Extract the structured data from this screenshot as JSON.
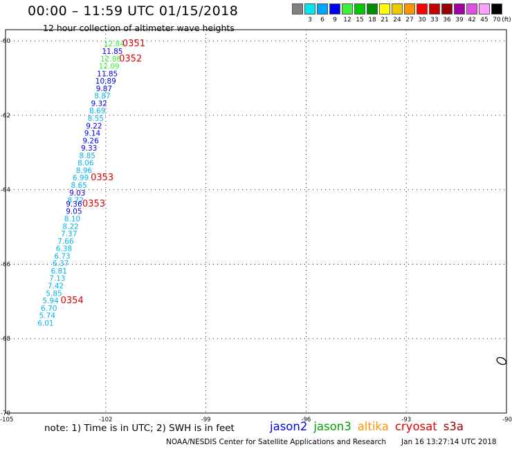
{
  "header": {
    "title": "00:00 – 11:59 UTC 01/15/2018",
    "subtitle": "12 hour collection of altimeter wave heights"
  },
  "legend": {
    "unit_label": "(ft)",
    "bins": [
      {
        "label": "",
        "color": "#808080"
      },
      {
        "label": "3",
        "color": "#00e5ee"
      },
      {
        "label": "6",
        "color": "#00a5ff"
      },
      {
        "label": "9",
        "color": "#0000ee"
      },
      {
        "label": "12",
        "color": "#3cf03c"
      },
      {
        "label": "15",
        "color": "#00c800"
      },
      {
        "label": "18",
        "color": "#008c00"
      },
      {
        "label": "21",
        "color": "#ffff00"
      },
      {
        "label": "24",
        "color": "#f0c800"
      },
      {
        "label": "27",
        "color": "#ff9600"
      },
      {
        "label": "30",
        "color": "#ff0000"
      },
      {
        "label": "33",
        "color": "#c80000"
      },
      {
        "label": "36",
        "color": "#960000"
      },
      {
        "label": "39",
        "color": "#a000a0"
      },
      {
        "label": "42",
        "color": "#e050e0"
      },
      {
        "label": "45",
        "color": "#ffa0ff"
      },
      {
        "label": "70",
        "color": "#000000"
      }
    ]
  },
  "map": {
    "lat_ticks": [
      "-60",
      "-62",
      "-64",
      "-66",
      "-68",
      "-70"
    ],
    "lon_ticks": [
      "-105",
      "-102",
      "-99",
      "-96",
      "-93",
      "-90"
    ],
    "observations": [
      {
        "value": "12.84",
        "color": "#3cf03c",
        "lat": -60.15,
        "lon": -101.75
      },
      {
        "value": "11.85",
        "color": "#0000ee",
        "lat": -60.35,
        "lon": -101.8
      },
      {
        "value": "12.86",
        "color": "#3cf03c",
        "lat": -60.55,
        "lon": -101.85
      },
      {
        "value": "12.09",
        "color": "#3cf03c",
        "lat": -60.75,
        "lon": -101.9
      },
      {
        "value": "11.85",
        "color": "#0000ee",
        "lat": -60.95,
        "lon": -101.95
      },
      {
        "value": "10.89",
        "color": "#0000ee",
        "lat": -61.15,
        "lon": -102.0
      },
      {
        "value": "9.87",
        "color": "#0000ee",
        "lat": -61.35,
        "lon": -102.05
      },
      {
        "value": "8.87",
        "color": "#00b4ee",
        "lat": -61.55,
        "lon": -102.1
      },
      {
        "value": "9.32",
        "color": "#0000ee",
        "lat": -61.75,
        "lon": -102.2
      },
      {
        "value": "8.69",
        "color": "#00b4ee",
        "lat": -61.95,
        "lon": -102.25
      },
      {
        "value": "8.55",
        "color": "#00b4ee",
        "lat": -62.15,
        "lon": -102.3
      },
      {
        "value": "9.22",
        "color": "#0000ee",
        "lat": -62.35,
        "lon": -102.35
      },
      {
        "value": "9.14",
        "color": "#0000ee",
        "lat": -62.55,
        "lon": -102.4
      },
      {
        "value": "9.26",
        "color": "#0000ee",
        "lat": -62.75,
        "lon": -102.45
      },
      {
        "value": "9.33",
        "color": "#0000ee",
        "lat": -62.95,
        "lon": -102.5
      },
      {
        "value": "8.85",
        "color": "#00b4ee",
        "lat": -63.15,
        "lon": -102.55
      },
      {
        "value": "8.06",
        "color": "#00b4ee",
        "lat": -63.35,
        "lon": -102.6
      },
      {
        "value": "8.96",
        "color": "#00b4ee",
        "lat": -63.55,
        "lon": -102.65
      },
      {
        "value": "6.99",
        "color": "#00b4ee",
        "lat": -63.75,
        "lon": -102.75
      },
      {
        "value": "8.65",
        "color": "#00b4ee",
        "lat": -63.95,
        "lon": -102.8
      },
      {
        "value": "9.03",
        "color": "#0000ee",
        "lat": -64.15,
        "lon": -102.85
      },
      {
        "value": "8.72",
        "color": "#00b4ee",
        "lat": -64.35,
        "lon": -102.9
      },
      {
        "value": "9.36",
        "color": "#0000ee",
        "lat": -64.45,
        "lon": -102.95
      },
      {
        "value": "9.05",
        "color": "#0000ee",
        "lat": -64.65,
        "lon": -102.95
      },
      {
        "value": "8.10",
        "color": "#00b4ee",
        "lat": -64.85,
        "lon": -103.0
      },
      {
        "value": "8.22",
        "color": "#00b4ee",
        "lat": -65.05,
        "lon": -103.05
      },
      {
        "value": "7.37",
        "color": "#00b4ee",
        "lat": -65.25,
        "lon": -103.1
      },
      {
        "value": "7.66",
        "color": "#00b4ee",
        "lat": -65.45,
        "lon": -103.2
      },
      {
        "value": "6.38",
        "color": "#00b4ee",
        "lat": -65.65,
        "lon": -103.25
      },
      {
        "value": "6.73",
        "color": "#00b4ee",
        "lat": -65.85,
        "lon": -103.3
      },
      {
        "value": "6.37",
        "color": "#00b4ee",
        "lat": -66.05,
        "lon": -103.35
      },
      {
        "value": "6.81",
        "color": "#00b4ee",
        "lat": -66.25,
        "lon": -103.4
      },
      {
        "value": "7.13",
        "color": "#00b4ee",
        "lat": -66.45,
        "lon": -103.45
      },
      {
        "value": "7.42",
        "color": "#00b4ee",
        "lat": -66.65,
        "lon": -103.5
      },
      {
        "value": "5.85",
        "color": "#00b4ee",
        "lat": -66.85,
        "lon": -103.55
      },
      {
        "value": "5.94",
        "color": "#00b4ee",
        "lat": -67.05,
        "lon": -103.65
      },
      {
        "value": "6.70",
        "color": "#00b4ee",
        "lat": -67.25,
        "lon": -103.7
      },
      {
        "value": "5.74",
        "color": "#00b4ee",
        "lat": -67.45,
        "lon": -103.75
      },
      {
        "value": "6.01",
        "color": "#00b4ee",
        "lat": -67.65,
        "lon": -103.8
      }
    ],
    "pass_times": [
      {
        "label": "0351",
        "lat": -60.15,
        "lon": -101.5
      },
      {
        "label": "0352",
        "lat": -60.55,
        "lon": -101.6
      },
      {
        "label": "0353",
        "lat": -63.75,
        "lon": -102.45
      },
      {
        "label": "0353",
        "lat": -64.45,
        "lon": -102.7
      },
      {
        "label": "0354",
        "lat": -67.05,
        "lon": -103.35
      }
    ],
    "island": {
      "lat": -68.6,
      "lon": -90.15
    }
  },
  "footer": {
    "note": "note: 1) Time is in UTC; 2) SWH is in feet",
    "satellites": [
      {
        "name": "jason2",
        "color": "#0000ee"
      },
      {
        "name": "jason3",
        "color": "#00a000"
      },
      {
        "name": "altika",
        "color": "#ff9600"
      },
      {
        "name": "cryosat",
        "color": "#e00000"
      },
      {
        "name": "s3a",
        "color": "#a00000"
      }
    ],
    "credit": "NOAA/NESDIS Center for Satellite Applications and Research",
    "timestamp": "Jan 16 13:27:14 UTC 2018"
  }
}
